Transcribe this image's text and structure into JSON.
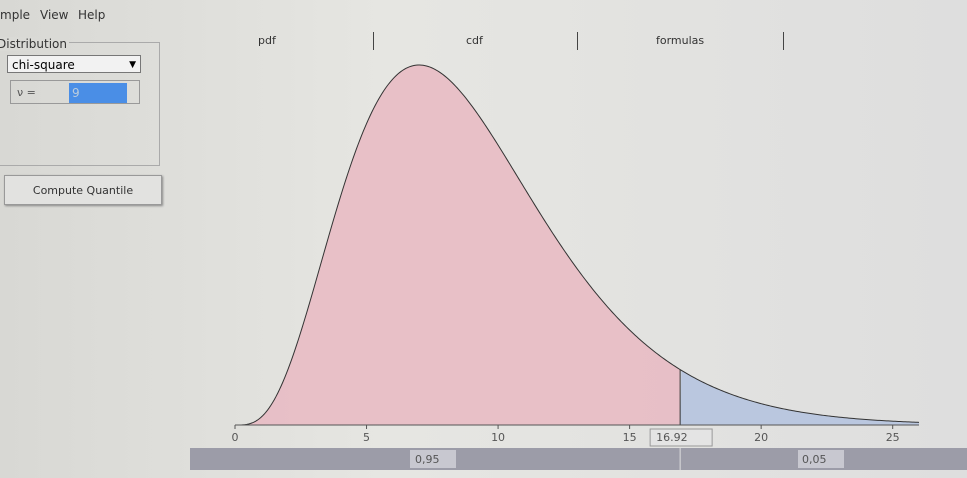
{
  "menu": [
    "Example",
    "View",
    "Help"
  ],
  "panel": {
    "title": "Distribution",
    "distribution": "chi-square",
    "param_label": "ν =",
    "param_value": "9",
    "button": "Compute Quantile"
  },
  "tabs": [
    "pdf",
    "cdf",
    "formulas"
  ],
  "chart": {
    "type": "chi-square-pdf",
    "df": 9,
    "xlim": [
      0,
      26
    ],
    "xticks": [
      0,
      5,
      10,
      15,
      20,
      25
    ],
    "quantile": 16.92,
    "lower_color": "#e8b6c0",
    "upper_color": "#b6c4df",
    "lower_area": "0,95",
    "upper_area": "0,05"
  }
}
